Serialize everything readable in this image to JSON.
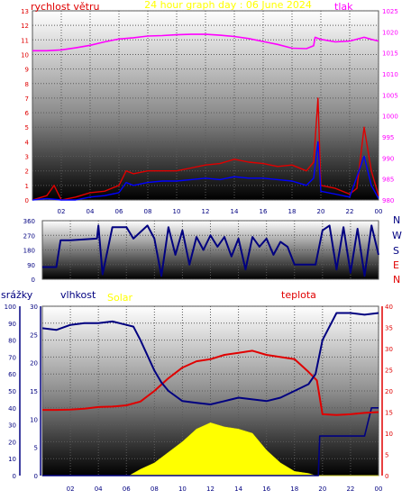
{
  "colors": {
    "wind_speed": "#e00000",
    "wind_gust": "#0000ff",
    "pressure": "#ff00ff",
    "direction": "#000080",
    "humidity": "#000080",
    "temperature": "#e00000",
    "solar": "#ffff00",
    "rain": "#000080",
    "title": "#ffff00"
  },
  "chart_data": [
    {
      "type": "line",
      "title": "24 hour graph day : 06 June 2024",
      "ylabel_left": "rychlost větru",
      "ylabel_right": "tlak",
      "x_ticks": [
        "02",
        "04",
        "06",
        "08",
        "10",
        "12",
        "14",
        "16",
        "18",
        "20",
        "22",
        "00"
      ],
      "ylim_left": [
        0,
        13
      ],
      "y_ticks_left": [
        "0",
        "1",
        "2",
        "3",
        "4",
        "5",
        "6",
        "7",
        "8",
        "9",
        "10",
        "11",
        "12",
        "13"
      ],
      "ylim_right": [
        980,
        1025
      ],
      "y_ticks_right": [
        "980",
        "985",
        "990",
        "995",
        "1000",
        "1005",
        "1010",
        "1015",
        "1020",
        "1025"
      ],
      "series": [
        {
          "color": "#ff00ff",
          "axis": "right",
          "hours": [
            0,
            1,
            2,
            3,
            4,
            5,
            6,
            7,
            8,
            9,
            10,
            11,
            12,
            13,
            14,
            15,
            16,
            17,
            18,
            19,
            19.5,
            19.6,
            20,
            21,
            22,
            23,
            23.5,
            24
          ],
          "values": [
            1015.5,
            1015.5,
            1015.7,
            1016.2,
            1016.8,
            1017.6,
            1018.3,
            1018.6,
            1019,
            1019.1,
            1019.3,
            1019.4,
            1019.4,
            1019.2,
            1018.9,
            1018.4,
            1017.7,
            1017,
            1016.1,
            1016,
            1016.7,
            1018.7,
            1018.2,
            1017.6,
            1017.8,
            1018.7,
            1018.2,
            1017.8
          ]
        },
        {
          "color": "#e00000",
          "axis": "left",
          "hours": [
            0,
            1,
            1.5,
            2,
            3,
            4,
            5,
            6,
            6.5,
            7,
            8,
            9,
            10,
            11,
            12,
            13,
            14,
            15,
            16,
            17,
            18,
            19,
            19.5,
            19.8,
            20,
            21,
            22,
            22.5,
            23,
            23.5,
            24
          ],
          "values": [
            0,
            0.3,
            1,
            0,
            0.2,
            0.5,
            0.6,
            1,
            2,
            1.8,
            2,
            2,
            2,
            2.2,
            2.4,
            2.5,
            2.8,
            2.6,
            2.5,
            2.3,
            2.4,
            2,
            2.6,
            7,
            1,
            0.8,
            0.4,
            0.8,
            5,
            2,
            0.3
          ]
        },
        {
          "color": "#0000ff",
          "axis": "left",
          "hours": [
            0,
            1,
            2,
            3,
            4,
            5,
            6,
            6.5,
            7,
            8,
            9,
            10,
            11,
            12,
            13,
            14,
            15,
            16,
            17,
            18,
            19,
            19.5,
            19.8,
            20,
            21,
            22,
            23,
            23.5,
            24
          ],
          "values": [
            0,
            0.1,
            0,
            0,
            0.2,
            0.3,
            0.5,
            1.2,
            1,
            1.2,
            1.3,
            1.3,
            1.4,
            1.5,
            1.4,
            1.6,
            1.5,
            1.5,
            1.4,
            1.3,
            1,
            1.5,
            4,
            0.6,
            0.4,
            0.2,
            3,
            1,
            0.1
          ]
        }
      ]
    },
    {
      "type": "line",
      "ylim": [
        0,
        360
      ],
      "y_ticks": [
        "0",
        "90",
        "180",
        "270",
        "360"
      ],
      "direction_labels": [
        "N",
        "W",
        "S",
        "E",
        "N"
      ],
      "series": [
        {
          "color": "#000080",
          "hours": [
            0,
            1,
            1.3,
            2,
            3,
            3.9,
            4,
            4.3,
            5,
            6,
            6.5,
            7,
            7.5,
            8,
            8.5,
            9,
            9.5,
            10,
            10.5,
            11,
            11.5,
            12,
            12.5,
            13,
            13.5,
            14,
            14.5,
            15,
            15.5,
            16,
            16.5,
            17,
            17.5,
            18,
            18.5,
            19,
            19.5,
            20,
            20.5,
            21,
            21.5,
            22,
            22.5,
            23,
            23.5,
            24
          ],
          "values": [
            75,
            75,
            240,
            240,
            245,
            250,
            330,
            30,
            320,
            320,
            250,
            290,
            330,
            250,
            20,
            320,
            150,
            300,
            90,
            260,
            180,
            270,
            200,
            260,
            140,
            250,
            60,
            260,
            200,
            250,
            150,
            230,
            200,
            90,
            90,
            90,
            90,
            300,
            330,
            60,
            320,
            40,
            310,
            20,
            330,
            150
          ]
        }
      ]
    },
    {
      "type": "line",
      "ylabel_rain": "srážky",
      "ylabel_humidity": "vlhkost",
      "ylabel_solar": "Solar",
      "ylabel_temperature": "teplota",
      "x_ticks": [
        "02",
        "04",
        "06",
        "08",
        "10",
        "12",
        "14",
        "16",
        "18",
        "20",
        "22",
        "00"
      ],
      "ylim_humidity": [
        0,
        100
      ],
      "y_ticks_humidity": [
        "0",
        "10",
        "20",
        "30",
        "40",
        "50",
        "60",
        "70",
        "80",
        "90",
        "100"
      ],
      "ylim_rain": [
        0,
        30
      ],
      "y_ticks_rain": [
        "0",
        "5",
        "10",
        "15",
        "20",
        "25",
        "30"
      ],
      "ylim_temperature": [
        0,
        40
      ],
      "y_ticks_temperature": [
        "0",
        "5",
        "10",
        "15",
        "20",
        "25",
        "30",
        "35",
        "40"
      ],
      "series": [
        {
          "color": "#000080",
          "axis": "humidity",
          "hours": [
            0,
            1,
            2,
            3,
            4,
            5,
            6,
            6.5,
            7,
            8,
            8.5,
            9,
            10,
            11,
            12,
            13,
            14,
            15,
            16,
            17,
            18,
            19,
            19.5,
            20,
            21,
            22,
            23,
            24
          ],
          "values": [
            87,
            86,
            89,
            90,
            90,
            91,
            89,
            88,
            80,
            62,
            55,
            50,
            44,
            43,
            42,
            44,
            46,
            45,
            44,
            46,
            50,
            54,
            60,
            80,
            96,
            96,
            95,
            96
          ]
        },
        {
          "color": "#e00000",
          "axis": "temperature",
          "hours": [
            0,
            1,
            2,
            3,
            4,
            5,
            6,
            7,
            8,
            9,
            10,
            11,
            12,
            13,
            14,
            15,
            16,
            17,
            18,
            19,
            19.6,
            20,
            21,
            22,
            23,
            24
          ],
          "values": [
            15.5,
            15.5,
            15.6,
            15.8,
            16.2,
            16.3,
            16.6,
            17.5,
            20,
            23,
            25.5,
            27,
            27.5,
            28.5,
            29,
            29.5,
            28.5,
            28,
            27.5,
            24.5,
            22.5,
            14.5,
            14.3,
            14.5,
            14.8,
            15
          ]
        },
        {
          "color": "#000080",
          "axis": "rain",
          "hours": [
            0,
            19.7,
            19.8,
            23,
            23.5,
            24
          ],
          "values": [
            0,
            0,
            7,
            7,
            12,
            12
          ]
        },
        {
          "color": "#ffff00",
          "axis": "temperature",
          "type": "area",
          "hours": [
            0,
            6.2,
            7,
            8,
            9,
            10,
            11,
            12,
            12.5,
            13,
            14,
            15,
            16,
            17,
            18,
            19,
            19.5,
            24
          ],
          "values": [
            0,
            0,
            1.5,
            3,
            5.5,
            8,
            11,
            12.5,
            12,
            11.5,
            11,
            10,
            6,
            3,
            1,
            0.5,
            0,
            0
          ]
        }
      ]
    }
  ]
}
